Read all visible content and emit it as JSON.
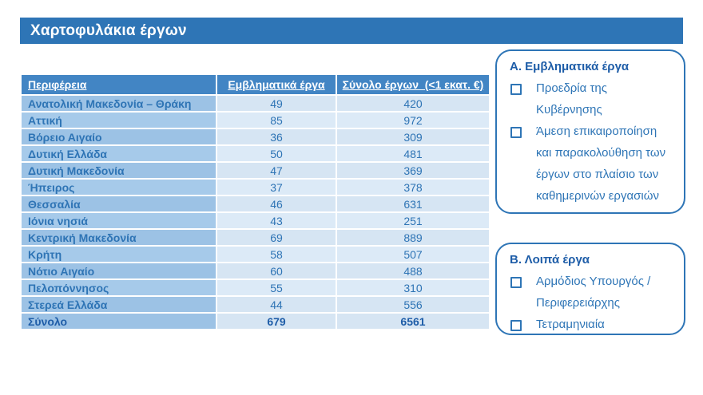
{
  "title": "Χαρτοφυλάκια έργων",
  "table": {
    "headers": [
      "Περιφέρεια",
      "Εμβληματικά έργα",
      "Σύνολο έργων  (<1 εκατ. €)"
    ],
    "rows": [
      {
        "region": "Ανατολική Μακεδονία – Θράκη",
        "flagship": "49",
        "total": "420"
      },
      {
        "region": "Αττική",
        "flagship": "85",
        "total": "972"
      },
      {
        "region": "Βόρειο Αιγαίο",
        "flagship": "36",
        "total": "309"
      },
      {
        "region": "Δυτική Ελλάδα",
        "flagship": "50",
        "total": "481"
      },
      {
        "region": "Δυτική Μακεδονία",
        "flagship": "47",
        "total": "369"
      },
      {
        "region": "Ήπειρος",
        "flagship": "37",
        "total": "378"
      },
      {
        "region": "Θεσσαλία",
        "flagship": "46",
        "total": "631"
      },
      {
        "region": "Ιόνια νησιά",
        "flagship": "43",
        "total": "251"
      },
      {
        "region": "Κεντρική Μακεδονία",
        "flagship": "69",
        "total": "889"
      },
      {
        "region": "Κρήτη",
        "flagship": "58",
        "total": "507"
      },
      {
        "region": "Νότιο Αιγαίο",
        "flagship": "60",
        "total": "488"
      },
      {
        "region": "Πελοπόννησος",
        "flagship": "55",
        "total": "310"
      },
      {
        "region": "Στερεά Ελλάδα",
        "flagship": "44",
        "total": "556"
      }
    ],
    "total_row": {
      "region": "Σύνολο",
      "flagship": "679",
      "total": "6561"
    }
  },
  "boxes": [
    {
      "title": "Α. Εμβληματικά έργα",
      "items": [
        "Προεδρία της Κυβέρνησης",
        "Άμεση επικαιροποίηση και παρακολούθηση των έργων στο πλαίσιο των καθημερινών εργασιών"
      ]
    },
    {
      "title": "Β. Λοιπά έργα",
      "items": [
        "Αρμόδιος Υπουργός / Περιφερειάρχης",
        "Τετραμηνιαία"
      ]
    }
  ],
  "colors": {
    "title_bar": "#2E75B6",
    "table_header": "#4285C4",
    "first_column": "#9CC2E5",
    "data_cells": "#D6E5F3",
    "text_blue": "#2E74B5",
    "box_border": "#2E75B6"
  }
}
